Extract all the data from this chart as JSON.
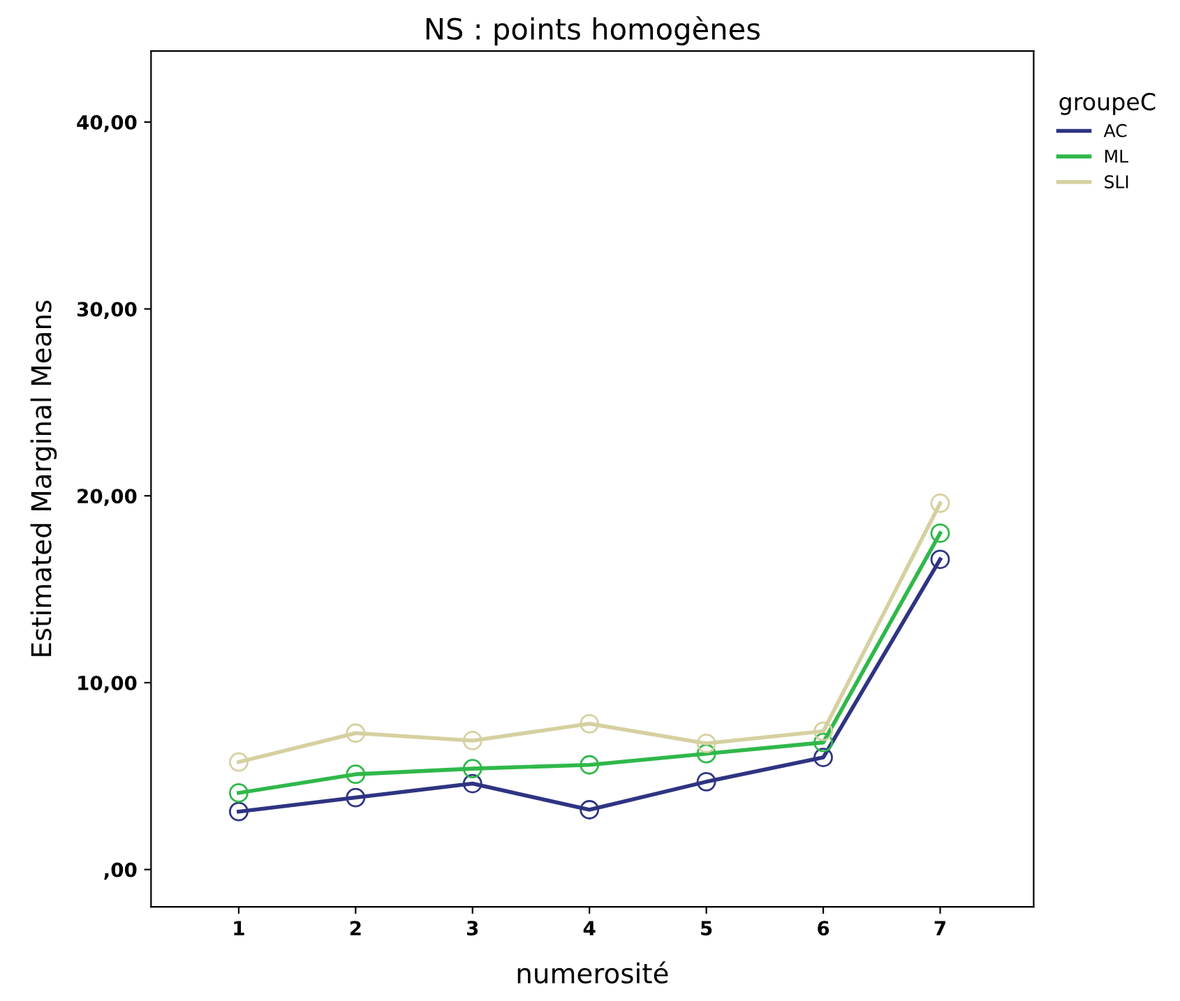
{
  "chart_data": {
    "type": "line",
    "title": "NS : points homogènes",
    "xlabel": "numerosité",
    "ylabel": "Estimated Marginal Means",
    "legend_title": "groupeC",
    "categories": [
      "1",
      "2",
      "3",
      "4",
      "5",
      "6",
      "7"
    ],
    "series": [
      {
        "name": "AC",
        "color": "#2e3482",
        "values": [
          3.1,
          3.85,
          4.6,
          3.2,
          4.7,
          6.0,
          16.6
        ]
      },
      {
        "name": "ML",
        "color": "#2fb84a",
        "values": [
          4.1,
          5.1,
          5.4,
          5.6,
          6.2,
          6.8,
          18.0
        ]
      },
      {
        "name": "SLI",
        "color": "#d6d0a0",
        "values": [
          5.75,
          7.3,
          6.9,
          7.8,
          6.75,
          7.4,
          19.6
        ]
      }
    ],
    "ylim": [
      -2,
      43.8
    ],
    "yticks": [
      {
        "value": 0,
        "label": ",00"
      },
      {
        "value": 10,
        "label": "10,00"
      },
      {
        "value": 20,
        "label": "20,00"
      },
      {
        "value": 30,
        "label": "30,00"
      },
      {
        "value": 40,
        "label": "40,00"
      }
    ],
    "grid": false,
    "legend": "right",
    "marker": "circle",
    "line_style": "solid"
  }
}
